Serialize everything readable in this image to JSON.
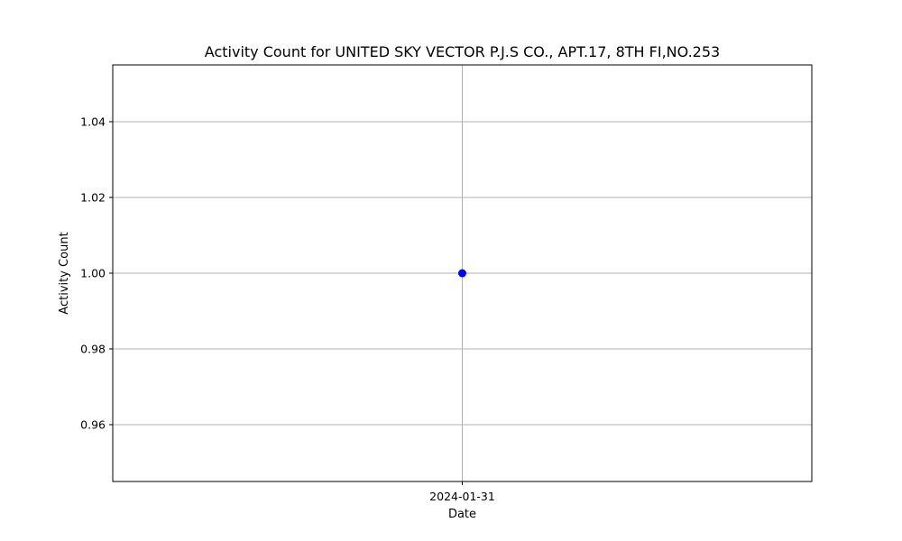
{
  "chart_data": {
    "type": "line",
    "title": "Activity Count for UNITED SKY VECTOR P.J.S CO., APT.17, 8TH FI,NO.253",
    "xlabel": "Date",
    "ylabel": "Activity Count",
    "x": [
      "2024-01-31"
    ],
    "series": [
      {
        "values": [
          1.0
        ],
        "color": "#0000ff",
        "marker": "circle"
      }
    ],
    "ylim": [
      0.945,
      1.055
    ],
    "yticks": [
      0.96,
      0.98,
      1.0,
      1.02,
      1.04
    ],
    "ytick_labels": [
      "0.96",
      "0.98",
      "1.00",
      "1.02",
      "1.04"
    ],
    "xtick_labels": [
      "2024-01-31"
    ],
    "grid": true,
    "grid_color": "#b0b0b0",
    "axes_color": "#000000"
  }
}
